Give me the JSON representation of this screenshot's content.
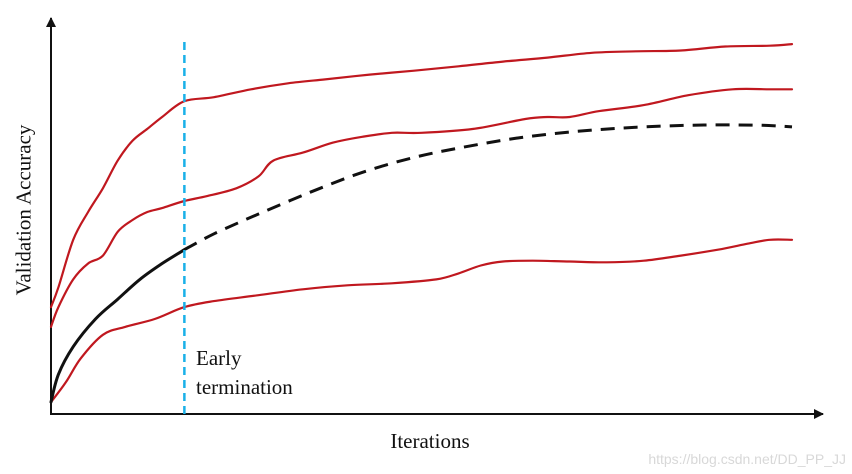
{
  "chart_data": {
    "type": "line",
    "title": "",
    "xlabel": "Iterations",
    "ylabel": "Validation Accuracy",
    "xlim": [
      0,
      100
    ],
    "ylim": [
      0,
      100
    ],
    "ticks": false,
    "grid": false,
    "legend": "none",
    "annotations": [
      {
        "text_lines": [
          "Early",
          "termination"
        ],
        "x": 18.0
      }
    ],
    "early_termination_x": 18.0,
    "colors": {
      "red_curve": "#c0181f",
      "black_curve": "#111111",
      "termination_line": "#1ab0e8",
      "axis": "#111111"
    },
    "series": [
      {
        "style": "solid-red",
        "points": [
          [
            0,
            27
          ],
          [
            1,
            32
          ],
          [
            3,
            44
          ],
          [
            5,
            51
          ],
          [
            7,
            57
          ],
          [
            9,
            64
          ],
          [
            11,
            69
          ],
          [
            13,
            72
          ],
          [
            15,
            75
          ],
          [
            18,
            79
          ],
          [
            22,
            80
          ],
          [
            27,
            82
          ],
          [
            32,
            83.5
          ],
          [
            37,
            84.5
          ],
          [
            43,
            85.7
          ],
          [
            49,
            86.7
          ],
          [
            55,
            87.8
          ],
          [
            61,
            89
          ],
          [
            67,
            90
          ],
          [
            73,
            91.2
          ],
          [
            79,
            91.6
          ],
          [
            85,
            91.8
          ],
          [
            91,
            92.8
          ],
          [
            97,
            93
          ],
          [
            100,
            93.4
          ]
        ]
      },
      {
        "style": "solid-red",
        "points": [
          [
            0,
            22
          ],
          [
            1,
            27
          ],
          [
            3,
            34
          ],
          [
            5,
            38
          ],
          [
            7,
            40
          ],
          [
            9,
            46
          ],
          [
            11,
            49
          ],
          [
            13,
            51
          ],
          [
            15,
            52
          ],
          [
            18,
            53.8
          ],
          [
            21,
            55
          ],
          [
            25,
            57
          ],
          [
            28,
            60
          ],
          [
            30,
            64
          ],
          [
            34,
            66
          ],
          [
            38,
            68.5
          ],
          [
            42,
            70
          ],
          [
            46,
            71
          ],
          [
            50,
            71
          ],
          [
            57,
            72
          ],
          [
            64,
            74.5
          ],
          [
            67,
            75
          ],
          [
            70,
            75
          ],
          [
            74,
            76.5
          ],
          [
            80,
            78
          ],
          [
            86,
            80.5
          ],
          [
            92,
            82
          ],
          [
            97,
            82
          ],
          [
            100,
            82
          ]
        ]
      },
      {
        "style": "solid-red",
        "points": [
          [
            0,
            3
          ],
          [
            2,
            8
          ],
          [
            4,
            14
          ],
          [
            7,
            20
          ],
          [
            10,
            22
          ],
          [
            14,
            24
          ],
          [
            18,
            27
          ],
          [
            22,
            28.5
          ],
          [
            28,
            30
          ],
          [
            34,
            31.5
          ],
          [
            40,
            32.5
          ],
          [
            46,
            33
          ],
          [
            52,
            34
          ],
          [
            55,
            35.5
          ],
          [
            58,
            37.5
          ],
          [
            61,
            38.5
          ],
          [
            65,
            38.7
          ],
          [
            70,
            38.5
          ],
          [
            75,
            38.3
          ],
          [
            80,
            38.7
          ],
          [
            85,
            40
          ],
          [
            90,
            41.5
          ],
          [
            94,
            43
          ],
          [
            97,
            44
          ],
          [
            100,
            44
          ]
        ]
      },
      {
        "style": "solid-black",
        "points": [
          [
            0,
            3
          ],
          [
            1,
            10
          ],
          [
            3,
            17
          ],
          [
            6,
            24
          ],
          [
            9,
            29
          ],
          [
            12,
            34
          ],
          [
            15,
            38
          ],
          [
            18,
            41.5
          ]
        ]
      },
      {
        "style": "dashed-black",
        "points": [
          [
            18,
            41.5
          ],
          [
            22,
            45.5
          ],
          [
            28,
            50.5
          ],
          [
            35,
            56
          ],
          [
            42,
            61
          ],
          [
            49,
            64.8
          ],
          [
            56,
            67.5
          ],
          [
            63,
            69.7
          ],
          [
            70,
            71.2
          ],
          [
            77,
            72.2
          ],
          [
            84,
            72.8
          ],
          [
            90,
            73
          ],
          [
            96,
            72.9
          ],
          [
            100,
            72.5
          ]
        ]
      }
    ]
  },
  "watermark": "https://blog.csdn.net/DD_PP_JJ"
}
